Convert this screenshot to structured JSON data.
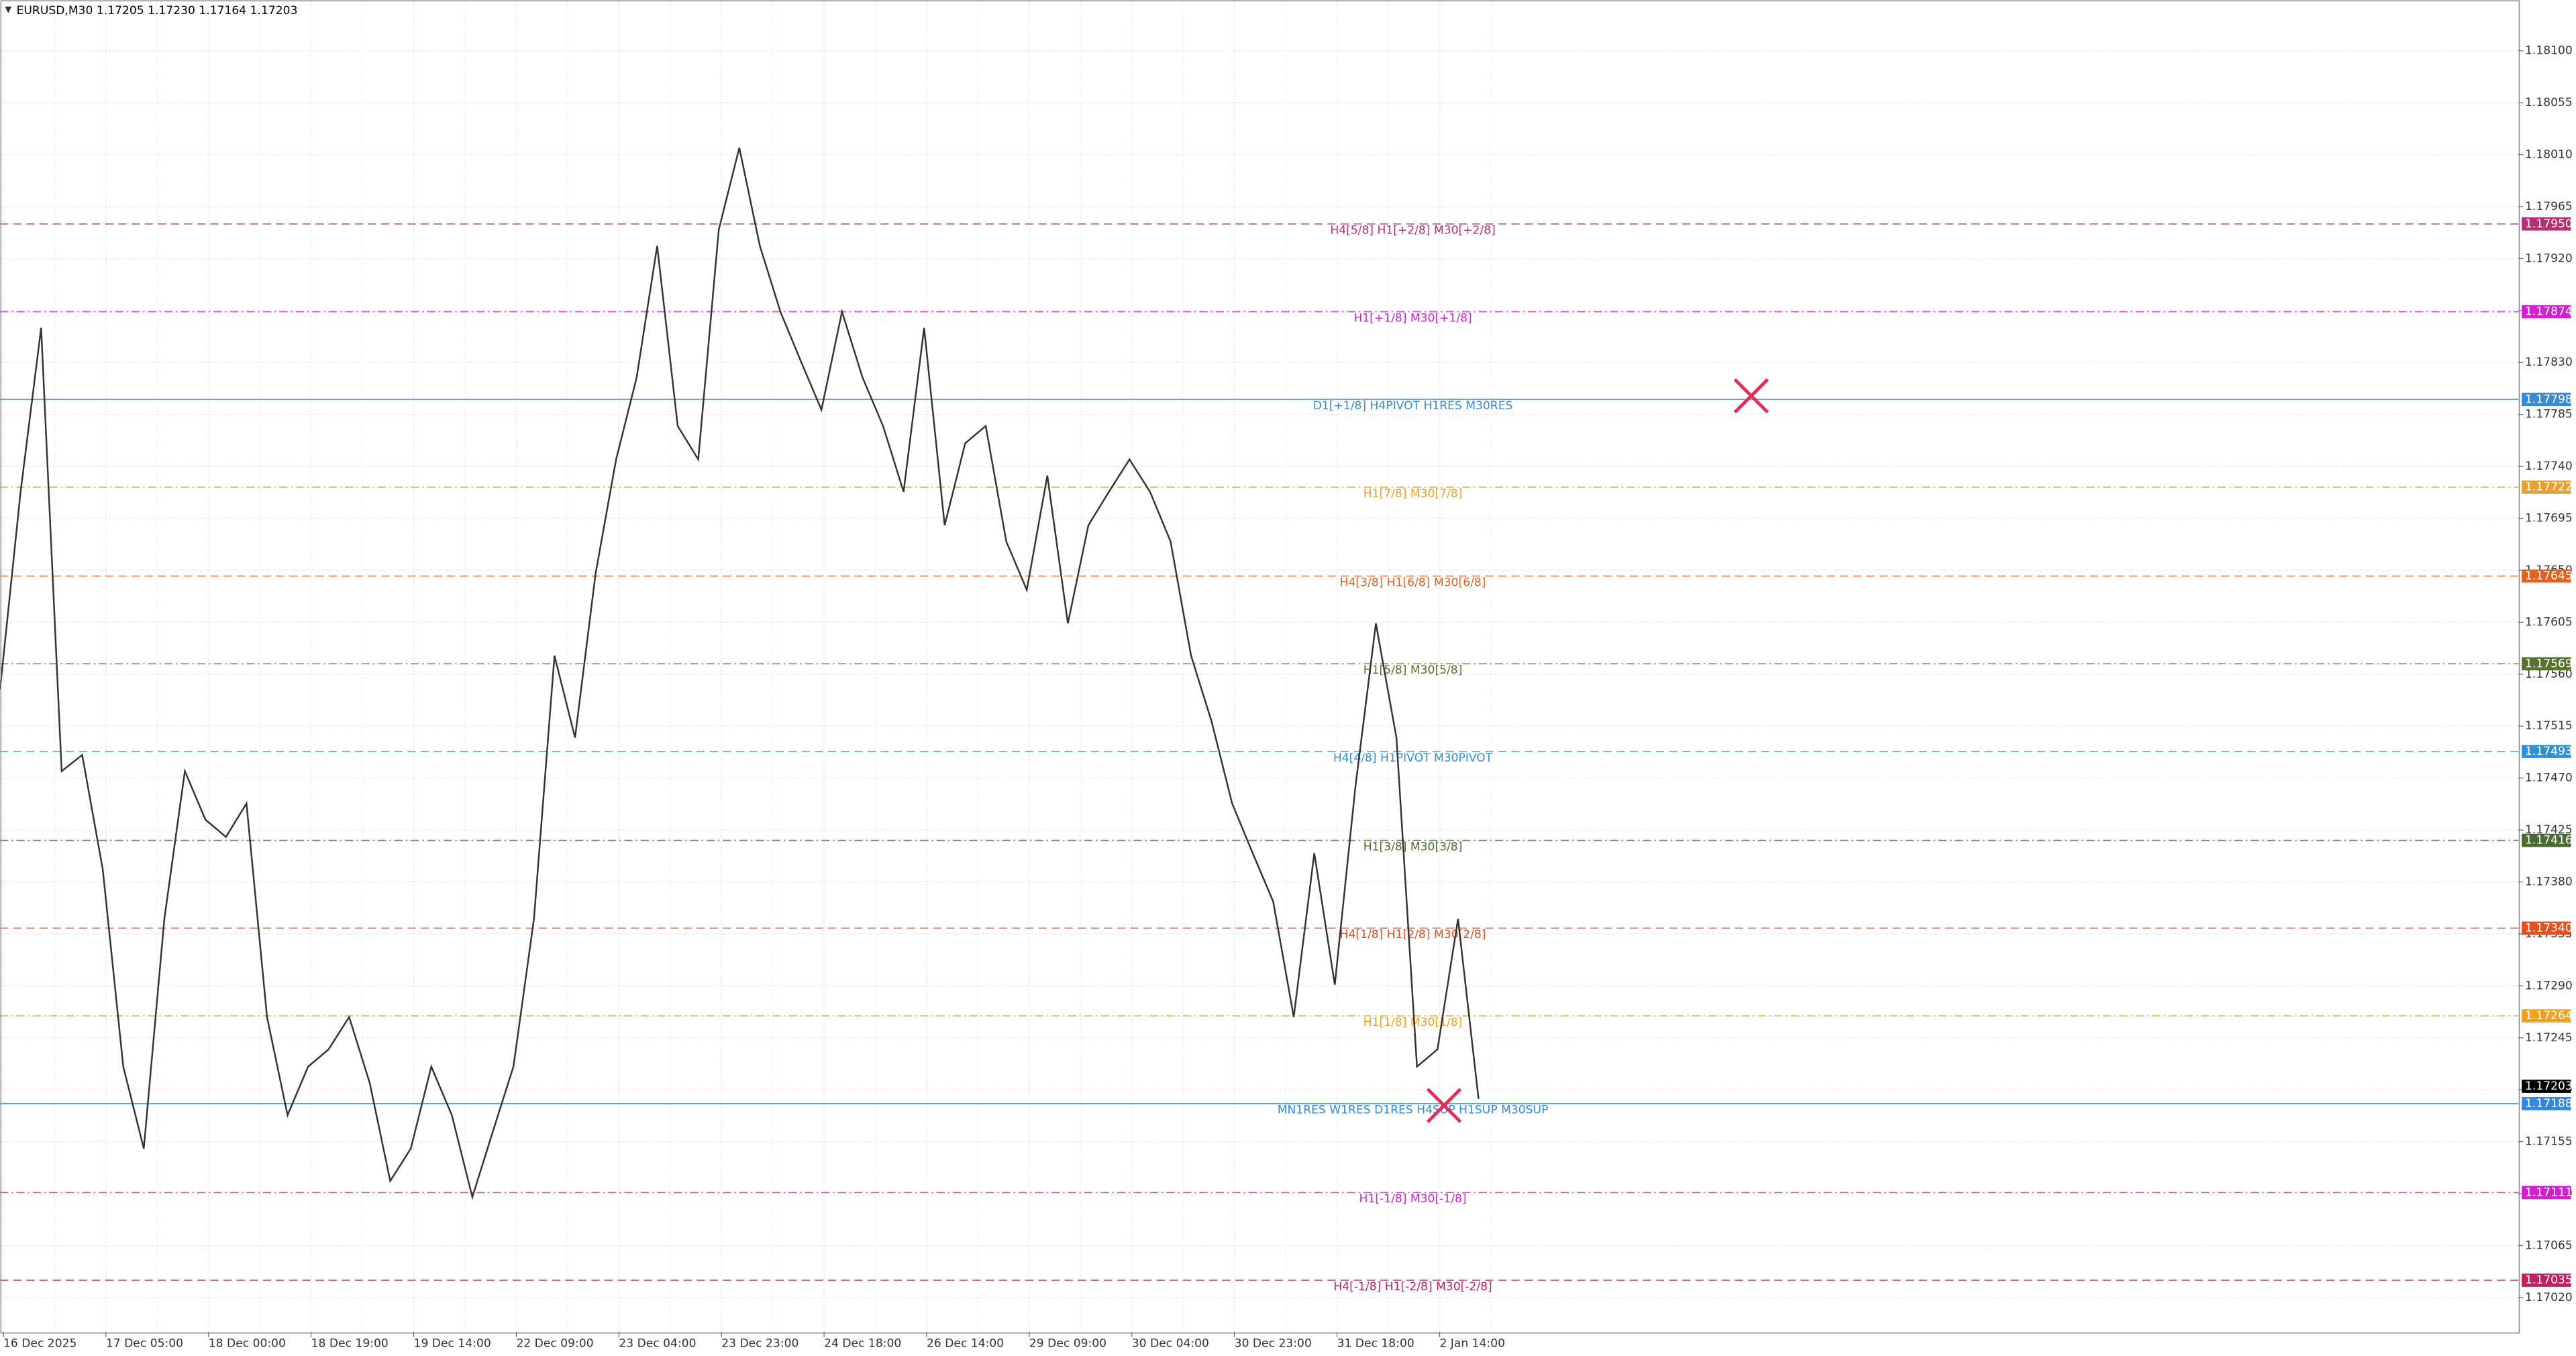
{
  "chart_data": {
    "type": "line",
    "title": "EURUSD,M30  1.17205 1.17230 1.17164 1.17203",
    "categories": [
      "16 Dec 2025",
      "17 Dec 05:00",
      "18 Dec 00:00",
      "18 Dec 19:00",
      "19 Dec 14:00",
      "22 Dec 09:00",
      "23 Dec 04:00",
      "23 Dec 23:00",
      "24 Dec 18:00",
      "26 Dec 14:00",
      "29 Dec 09:00",
      "30 Dec 04:00",
      "30 Dec 23:00",
      "31 Dec 18:00",
      "2 Jan 14:00"
    ],
    "price": {
      "color": "#333333",
      "values": [
        1.17547,
        1.17718,
        1.1786,
        1.17476,
        1.1749,
        1.17391,
        1.1722,
        1.17149,
        1.17348,
        1.17476,
        1.17434,
        1.17419,
        1.17448,
        1.17263,
        1.17178,
        1.1722,
        1.17235,
        1.17263,
        1.17206,
        1.17121,
        1.17149,
        1.1722,
        1.17178,
        1.17107,
        1.17164,
        1.1722,
        1.17348,
        1.17576,
        1.17505,
        1.17647,
        1.17746,
        1.17817,
        1.17931,
        1.17775,
        1.17746,
        1.17945,
        1.18016,
        1.17931,
        1.17874,
        1.17831,
        1.17789,
        1.17874,
        1.17817,
        1.17775,
        1.17718,
        1.1786,
        1.17689,
        1.1776,
        1.17775,
        1.17675,
        1.17633,
        1.17732,
        1.17604,
        1.17689,
        1.17718,
        1.17746,
        1.17718,
        1.17675,
        1.17576,
        1.17519,
        1.17448,
        1.17405,
        1.17363,
        1.17263,
        1.17405,
        1.17291,
        1.17462,
        1.17604,
        1.17505,
        1.1722,
        1.17235,
        1.17348,
        1.17192
      ]
    },
    "current": {
      "value": 1.17203,
      "label": "1.17203"
    },
    "levels": [
      {
        "value": 1.1795,
        "label": "1.17950",
        "text": "H4[5/8] H1[+2/8] M30[+2/8]",
        "color": "#b03070",
        "style": "dash"
      },
      {
        "value": 1.17874,
        "label": "1.17874",
        "text": "H1[+1/8] M30[+1/8]",
        "color": "#d020d0",
        "style": "dashdot"
      },
      {
        "value": 1.17798,
        "label": "1.17798",
        "text": "D1[+1/8] H4PIVOT H1RES M30RES",
        "color": "#3a8ad0",
        "style": "solid"
      },
      {
        "value": 1.17722,
        "label": "1.17722",
        "text": "H1[7/8] M30[7/8]",
        "color": "#e8a030",
        "style": "dashdot"
      },
      {
        "value": 1.17645,
        "label": "1.17645",
        "text": "H4[3/8] H1[6/8] M30[6/8]",
        "color": "#e06020",
        "style": "dash"
      },
      {
        "value": 1.17569,
        "label": "1.17569",
        "text": "H1[5/8] M30[5/8]",
        "color": "#5a7030",
        "style": "dashdot"
      },
      {
        "value": 1.17493,
        "label": "1.17493",
        "text": "H4[4/8] H1PIVOT M30PIVOT",
        "color": "#3090d0",
        "style": "dash"
      },
      {
        "value": 1.17416,
        "label": "1.17416",
        "text": "H1[3/8] M30[3/8]",
        "color": "#4a6a30",
        "style": "dashdot"
      },
      {
        "value": 1.1734,
        "label": "1.17340",
        "text": "H4[1/8] H1[2/8] M30[2/8]",
        "color": "#e05020",
        "style": "dash"
      },
      {
        "value": 1.17264,
        "label": "1.17264",
        "text": "H1[1/8] M30[1/8]",
        "color": "#f0a020",
        "style": "dashdot"
      },
      {
        "value": 1.17188,
        "label": "1.17188",
        "text": "MN1RES W1RES D1RES H4SUP H1SUP M30SUP",
        "color": "#3388dd",
        "style": "solid"
      },
      {
        "value": 1.17111,
        "label": "1.17111",
        "text": "H1[-1/8] M30[-1/8]",
        "color": "#d020d0",
        "style": "dashdot"
      },
      {
        "value": 1.17035,
        "label": "1.17035",
        "text": "H4[-1/8] H1[-2/8] M30[-2/8]",
        "color": "#c02060",
        "style": "dash"
      }
    ],
    "ylim": [
      1.1699,
      1.18144
    ],
    "yticks": [
      {
        "value": 1.181,
        "label": "1.18100"
      },
      {
        "value": 1.18055,
        "label": "1.18055"
      },
      {
        "value": 1.1801,
        "label": "1.18010"
      },
      {
        "value": 1.17965,
        "label": "1.17965"
      },
      {
        "value": 1.1792,
        "label": "1.17920"
      },
      {
        "value": 1.17875,
        "label": "1.17875"
      },
      {
        "value": 1.1783,
        "label": "1.17830"
      },
      {
        "value": 1.17785,
        "label": "1.17785"
      },
      {
        "value": 1.1774,
        "label": "1.17740"
      },
      {
        "value": 1.17695,
        "label": "1.17695"
      },
      {
        "value": 1.1765,
        "label": "1.17650"
      },
      {
        "value": 1.17605,
        "label": "1.17605"
      },
      {
        "value": 1.1756,
        "label": "1.17560"
      },
      {
        "value": 1.17515,
        "label": "1.17515"
      },
      {
        "value": 1.1747,
        "label": "1.17470"
      },
      {
        "value": 1.17425,
        "label": "1.17425"
      },
      {
        "value": 1.1738,
        "label": "1.17380"
      },
      {
        "value": 1.17335,
        "label": "1.17335"
      },
      {
        "value": 1.1729,
        "label": "1.17290"
      },
      {
        "value": 1.17245,
        "label": "1.17245"
      },
      {
        "value": 1.172,
        "label": "1.17200"
      },
      {
        "value": 1.17155,
        "label": "1.17155"
      },
      {
        "value": 1.1711,
        "label": "1.17110"
      },
      {
        "value": 1.17065,
        "label": "1.17065"
      },
      {
        "value": 1.1702,
        "label": "1.17020"
      }
    ],
    "grid": true
  }
}
